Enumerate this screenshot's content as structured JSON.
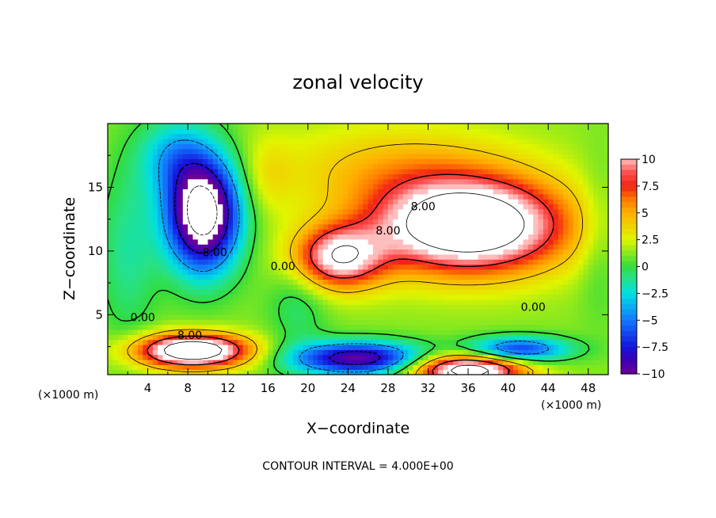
{
  "chart_data": {
    "type": "heatmap",
    "subtype": "filled contour",
    "title": "zonal velocity",
    "xlabel": "X−coordinate",
    "ylabel": "Z−coordinate",
    "x_unit_left": "(×1000 m)",
    "x_unit_right": "(×1000 m)",
    "footnote": "CONTOUR INTERVAL = 4.000E+00",
    "xlim": [
      0,
      50
    ],
    "ylim": [
      0.3,
      20
    ],
    "x_ticks": [
      4,
      8,
      12,
      16,
      20,
      24,
      28,
      32,
      36,
      40,
      44,
      48
    ],
    "x_tick_labels": [
      "4",
      "8",
      "12",
      "16",
      "20",
      "24",
      "28",
      "32",
      "36",
      "40",
      "44",
      "48"
    ],
    "y_ticks": [
      5,
      10,
      15
    ],
    "y_tick_labels": [
      "5",
      "10",
      "15"
    ],
    "colorbar": {
      "range": [
        -10,
        10
      ],
      "ticks": [
        10,
        7.5,
        5,
        2.5,
        0,
        -2.5,
        -5,
        -7.5,
        -10
      ],
      "tick_labels": [
        "10",
        "7.5",
        "5",
        "2.5",
        "0",
        "−2.5",
        "−5",
        "−7.5",
        "−10"
      ]
    },
    "contour_interval": 4,
    "contour_labels": [
      {
        "text": "0.00",
        "x": 3.5,
        "y": 4.5
      },
      {
        "text": "8.00",
        "x": 8.2,
        "y": 3.1
      },
      {
        "text": "-8.00",
        "x": 10.5,
        "y": 9.6
      },
      {
        "text": "0.00",
        "x": 17.5,
        "y": 8.5
      },
      {
        "text": "8.00",
        "x": 31.5,
        "y": 13.2
      },
      {
        "text": "8.00",
        "x": 28.0,
        "y": 11.3
      },
      {
        "text": "0.00",
        "x": 42.5,
        "y": 5.3
      }
    ],
    "features": [
      {
        "name": "upper-left negative jet",
        "x": 9,
        "z": 13,
        "value": -14
      },
      {
        "name": "upper-right positive jet",
        "x": 36,
        "z": 11.5,
        "value": 15
      },
      {
        "name": "left-bottom positive jet",
        "x": 8,
        "z": 2,
        "value": 14
      },
      {
        "name": "right-bottom positive core",
        "x": 36,
        "z": 1,
        "value": 13
      },
      {
        "name": "bottom-middle negative",
        "x": 25,
        "z": 1.5,
        "value": -10
      }
    ]
  }
}
